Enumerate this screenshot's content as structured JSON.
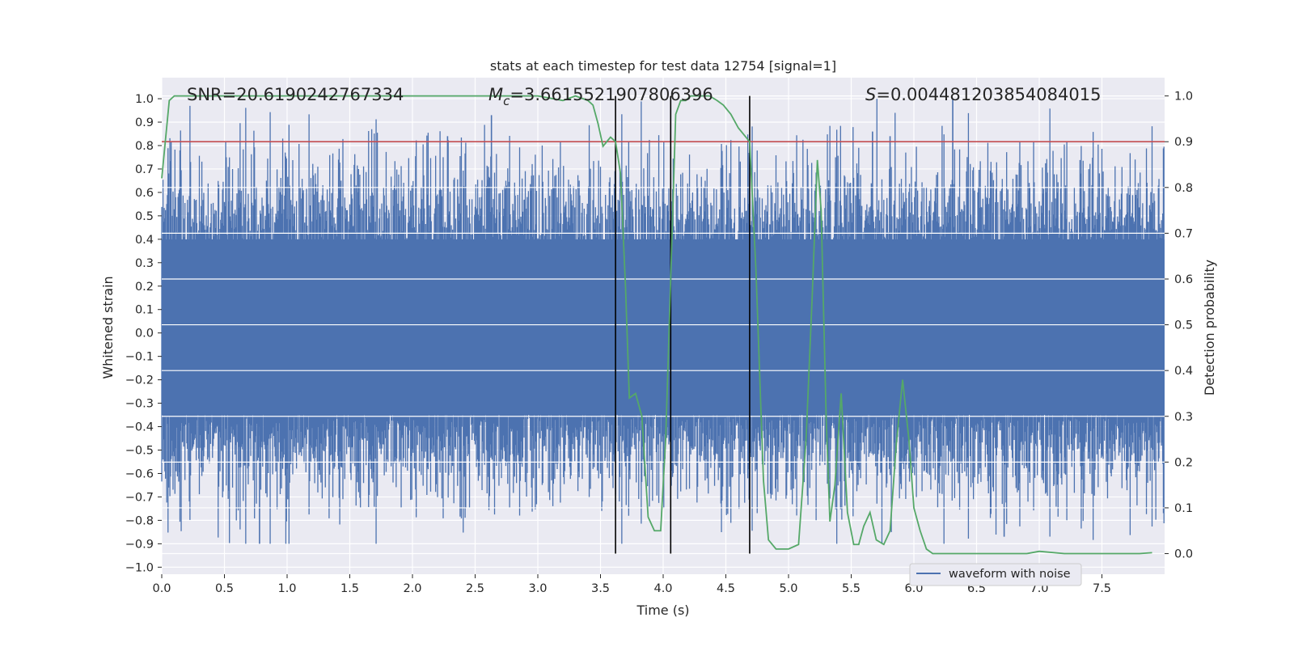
{
  "chart_data": {
    "type": "line",
    "title": "stats at each timestep for test data 12754 [signal=1]",
    "xlabel": "Time (s)",
    "ylabel_left": "Whitened strain",
    "ylabel_right": "Detection probability",
    "xlim": [
      0,
      8
    ],
    "ylim_left": [
      -1.03,
      1.09
    ],
    "ylim_right": [
      -0.045,
      1.04
    ],
    "x_ticks": [
      "0.0",
      "0.5",
      "1.0",
      "1.5",
      "2.0",
      "2.5",
      "3.0",
      "3.5",
      "4.0",
      "4.5",
      "5.0",
      "5.5",
      "6.0",
      "6.5",
      "7.0",
      "7.5"
    ],
    "x_tick_values": [
      0,
      0.5,
      1,
      1.5,
      2,
      2.5,
      3,
      3.5,
      4,
      4.5,
      5,
      5.5,
      6,
      6.5,
      7,
      7.5
    ],
    "y_left_ticks": [
      "1.0",
      "0.9",
      "0.8",
      "0.7",
      "0.6",
      "0.5",
      "0.4",
      "0.3",
      "0.2",
      "0.1",
      "0.0",
      "−0.1",
      "−0.2",
      "−0.3",
      "−0.4",
      "−0.5",
      "−0.6",
      "−0.7",
      "−0.8",
      "−0.9",
      "−1.0"
    ],
    "y_left_tick_values": [
      1.0,
      0.9,
      0.8,
      0.7,
      0.6,
      0.5,
      0.4,
      0.3,
      0.2,
      0.1,
      0.0,
      -0.1,
      -0.2,
      -0.3,
      -0.4,
      -0.5,
      -0.6,
      -0.7,
      -0.8,
      -0.9,
      -1.0
    ],
    "y_right_ticks": [
      "1.0",
      "0.9",
      "0.8",
      "0.7",
      "0.6",
      "0.5",
      "0.4",
      "0.3",
      "0.2",
      "0.1",
      "0.0"
    ],
    "y_right_tick_values": [
      1.0,
      0.9,
      0.8,
      0.7,
      0.6,
      0.5,
      0.4,
      0.3,
      0.2,
      0.1,
      0.0
    ],
    "annotations": {
      "snr": "SNR=20.6190242767334",
      "mc_symbol": "M",
      "mc_sub": "c",
      "mc_value": "=3.6615521907806396",
      "s_symbol": "S",
      "s_value": "=0.004481203854084015"
    },
    "legend": {
      "label": "waveform with noise",
      "placement": "lower-right"
    },
    "grid": true,
    "threshold_line": {
      "value_right_axis": 0.9,
      "color": "#c44e52"
    },
    "vertical_lines_x": [
      3.62,
      4.06,
      4.69
    ],
    "vertical_lines_range_right": [
      0.0,
      1.0
    ],
    "waveform": {
      "name": "waveform with noise",
      "color": "#4c72b0",
      "description_envelope": {
        "core_band": [
          -0.35,
          0.4
        ],
        "peak_max": 1.0,
        "peak_min": -0.9
      },
      "seed": 12754,
      "n_points": 1600,
      "notable_peaks": [
        {
          "x": 2.63,
          "y": 0.93
        },
        {
          "x": 2.28,
          "y": 0.84
        },
        {
          "x": 6.31,
          "y": 1.0
        },
        {
          "x": 5.81,
          "y": 0.84
        },
        {
          "x": 5.67,
          "y": 0.86
        },
        {
          "x": 0.78,
          "y": -0.9
        },
        {
          "x": 6.72,
          "y": -0.87
        }
      ]
    },
    "detection_probability": {
      "color": "#55a868",
      "x": [
        0.0,
        0.06,
        0.1,
        0.5,
        1.0,
        1.5,
        2.0,
        2.5,
        3.0,
        3.2,
        3.3,
        3.4,
        3.44,
        3.48,
        3.52,
        3.58,
        3.62,
        3.66,
        3.7,
        3.73,
        3.78,
        3.83,
        3.88,
        3.93,
        3.98,
        4.02,
        4.06,
        4.1,
        4.14,
        4.18,
        4.22,
        4.27,
        4.32,
        4.37,
        4.43,
        4.48,
        4.54,
        4.6,
        4.66,
        4.69,
        4.74,
        4.8,
        4.84,
        4.9,
        5.0,
        5.08,
        5.14,
        5.19,
        5.23,
        5.26,
        5.3,
        5.33,
        5.37,
        5.42,
        5.47,
        5.52,
        5.56,
        5.6,
        5.65,
        5.7,
        5.76,
        5.81,
        5.86,
        5.91,
        5.96,
        6.0,
        6.05,
        6.1,
        6.15,
        6.2,
        6.27,
        6.4,
        6.6,
        6.8,
        6.9,
        7.0,
        7.2,
        7.4,
        7.6,
        7.8,
        7.9
      ],
      "y": [
        0.82,
        0.99,
        1.0,
        1.0,
        1.0,
        1.0,
        1.0,
        1.0,
        1.0,
        0.99,
        1.0,
        0.99,
        0.98,
        0.94,
        0.89,
        0.91,
        0.9,
        0.83,
        0.58,
        0.34,
        0.35,
        0.3,
        0.08,
        0.05,
        0.05,
        0.25,
        0.6,
        0.96,
        0.99,
        0.99,
        1.0,
        1.0,
        1.0,
        1.0,
        0.99,
        0.98,
        0.96,
        0.93,
        0.91,
        0.9,
        0.62,
        0.16,
        0.03,
        0.01,
        0.01,
        0.02,
        0.25,
        0.57,
        0.86,
        0.75,
        0.3,
        0.07,
        0.15,
        0.35,
        0.09,
        0.02,
        0.02,
        0.06,
        0.09,
        0.03,
        0.02,
        0.05,
        0.24,
        0.38,
        0.25,
        0.1,
        0.05,
        0.01,
        0.0,
        0.0,
        0.0,
        0.0,
        0.0,
        0.0,
        0.0,
        0.005,
        0.0,
        0.0,
        0.0,
        0.0,
        0.002
      ]
    }
  }
}
